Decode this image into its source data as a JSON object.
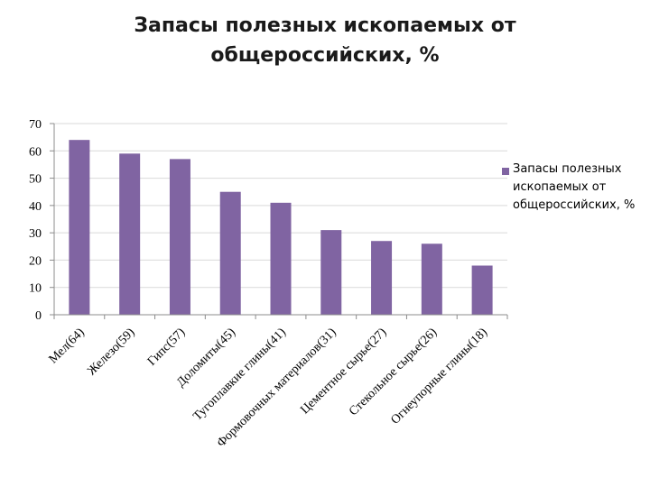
{
  "slide": {
    "title_line1": "Запасы полезных ископаемых от",
    "title_line2": "общероссийских, %"
  },
  "colors": {
    "bar": "#8064a2",
    "axis": "#8c8c8c",
    "grid": "#d9d9d9"
  },
  "chart_data": {
    "type": "bar",
    "categories": [
      "Мел(64)",
      "Железо(59)",
      "Гипс(57)",
      "Доломиты(45)",
      "Тугоплавкие глины(41)",
      "Формовочных материалов(31)",
      "Цементное сырье(27)",
      "Стекольное сырье(26)",
      "Огнеупорные глины(18)"
    ],
    "series": [
      {
        "name": "Запасы полезных ископаемых от общероссийских, %",
        "values": [
          64,
          59,
          57,
          45,
          41,
          31,
          27,
          26,
          18
        ]
      }
    ],
    "ylim": [
      0,
      70
    ],
    "yticks": [
      "0",
      "10",
      "20",
      "30",
      "40",
      "50",
      "60",
      "70"
    ],
    "grid": true,
    "legend": "right"
  },
  "legend": {
    "lines": [
      "Запасы полезных",
      "ископаемых от",
      "общероссийских, %"
    ]
  }
}
